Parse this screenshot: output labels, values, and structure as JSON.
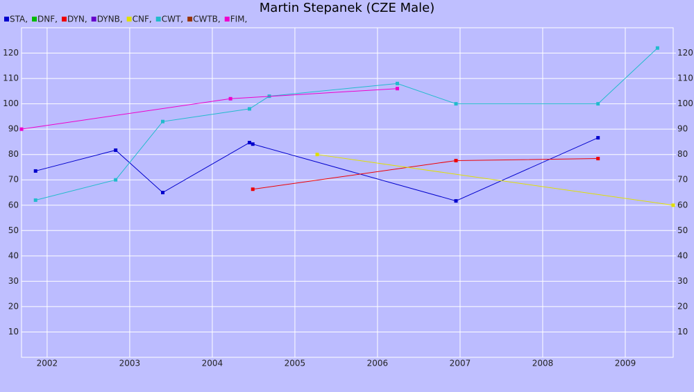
{
  "chart_data": {
    "type": "line",
    "title": "Martin Stepanek (CZE Male)",
    "xlim": [
      2001.69,
      2009.58
    ],
    "xticks": [
      2002,
      2003,
      2004,
      2005,
      2006,
      2007,
      2008,
      2009
    ],
    "ylim": [
      0,
      130
    ],
    "yticks": [
      10,
      20,
      30,
      40,
      50,
      60,
      70,
      80,
      90,
      100,
      110,
      120
    ],
    "y2lim": [
      0,
      130
    ],
    "y2ticks": [
      10,
      20,
      30,
      40,
      50,
      60,
      70,
      80,
      90,
      100,
      110,
      120
    ],
    "grid": true,
    "series": [
      {
        "name": "STA,",
        "color": "#0000cc",
        "x": [
          2001.86,
          2002.83,
          2003.4,
          2004.45,
          2004.49,
          2006.95,
          2008.67
        ],
        "values": [
          73.5,
          81.7,
          65,
          84.7,
          84.1,
          61.7,
          86.6
        ]
      },
      {
        "name": "DNF,",
        "color": "#00bb00",
        "x": [],
        "values": []
      },
      {
        "name": "DYN,",
        "color": "#ee0000",
        "x": [
          2004.49,
          2006.95,
          2008.67
        ],
        "values": [
          66.3,
          77.6,
          78.4
        ]
      },
      {
        "name": "DYNB,",
        "color": "#6600cc",
        "x": [],
        "values": []
      },
      {
        "name": "CNF,",
        "color": "#e0e000",
        "x": [
          2005.27,
          2009.58
        ],
        "values": [
          80,
          60
        ]
      },
      {
        "name": "CWT,",
        "color": "#22bbcc",
        "x": [
          2001.86,
          2002.83,
          2003.4,
          2004.45,
          2004.69,
          2006.24,
          2006.95,
          2008.67,
          2009.39
        ],
        "values": [
          62,
          70,
          93,
          98,
          103,
          108,
          100,
          100,
          122
        ]
      },
      {
        "name": "CWTB,",
        "color": "#993300",
        "x": [],
        "values": []
      },
      {
        "name": "FIM,",
        "color": "#ee00cc",
        "x": [
          2001.69,
          2004.22,
          2006.24
        ],
        "values": [
          90,
          102,
          106
        ]
      }
    ]
  }
}
